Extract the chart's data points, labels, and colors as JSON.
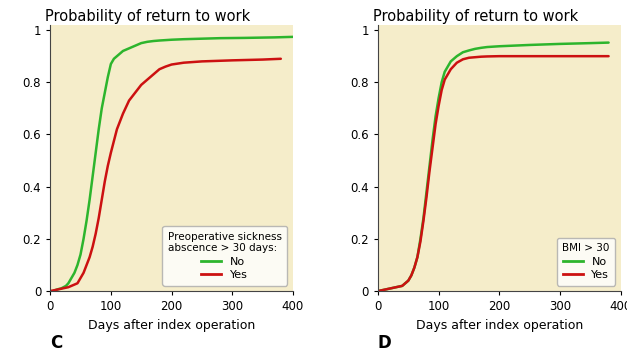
{
  "title": "Probability of return to work",
  "xlabel": "Days after index operation",
  "bg_color": "#f5edca",
  "green_color": "#2db52d",
  "red_color": "#cc1111",
  "xlim": [
    0,
    400
  ],
  "ylim": [
    0,
    1.02
  ],
  "xticks": [
    0,
    100,
    200,
    300,
    400
  ],
  "yticks": [
    0,
    0.2,
    0.4,
    0.6,
    0.8,
    1.0
  ],
  "ytick_labels": [
    "0",
    "0.2",
    "0.4",
    "0.6",
    "0.8",
    "1"
  ],
  "panel_C_label": "C",
  "panel_D_label": "D",
  "legend1_title": "Preoperative sickness\nabscence > 30 days:",
  "legend1_no": "No",
  "legend1_yes": "Yes",
  "legend2_title": "BMI > 30",
  "legend2_no": "No",
  "legend2_yes": "Yes",
  "C_green_x": [
    0,
    5,
    10,
    14,
    18,
    22,
    26,
    30,
    35,
    40,
    45,
    50,
    55,
    60,
    65,
    70,
    75,
    80,
    85,
    90,
    95,
    100,
    105,
    110,
    115,
    120,
    130,
    140,
    150,
    160,
    170,
    180,
    200,
    220,
    250,
    280,
    320,
    370,
    400
  ],
  "C_green_y": [
    0,
    0.0,
    0.005,
    0.008,
    0.01,
    0.015,
    0.02,
    0.03,
    0.05,
    0.07,
    0.1,
    0.14,
    0.2,
    0.27,
    0.35,
    0.44,
    0.53,
    0.62,
    0.7,
    0.76,
    0.82,
    0.87,
    0.89,
    0.9,
    0.91,
    0.92,
    0.93,
    0.94,
    0.95,
    0.955,
    0.958,
    0.96,
    0.963,
    0.965,
    0.967,
    0.969,
    0.97,
    0.972,
    0.974
  ],
  "C_red_x": [
    0,
    10,
    20,
    30,
    35,
    40,
    45,
    50,
    55,
    60,
    65,
    70,
    75,
    80,
    85,
    90,
    95,
    100,
    110,
    120,
    130,
    140,
    150,
    160,
    170,
    180,
    190,
    200,
    220,
    250,
    300,
    350,
    380
  ],
  "C_red_y": [
    0,
    0.005,
    0.01,
    0.015,
    0.02,
    0.025,
    0.03,
    0.05,
    0.07,
    0.1,
    0.13,
    0.17,
    0.22,
    0.28,
    0.35,
    0.42,
    0.48,
    0.53,
    0.62,
    0.68,
    0.73,
    0.76,
    0.79,
    0.81,
    0.83,
    0.85,
    0.86,
    0.868,
    0.875,
    0.88,
    0.884,
    0.887,
    0.89
  ],
  "D_green_x": [
    0,
    10,
    20,
    30,
    40,
    50,
    55,
    60,
    65,
    70,
    75,
    80,
    85,
    90,
    95,
    100,
    105,
    110,
    115,
    120,
    130,
    140,
    150,
    160,
    170,
    180,
    200,
    220,
    250,
    300,
    350,
    380
  ],
  "D_green_y": [
    0,
    0.005,
    0.01,
    0.015,
    0.02,
    0.04,
    0.06,
    0.09,
    0.13,
    0.2,
    0.28,
    0.38,
    0.48,
    0.58,
    0.67,
    0.74,
    0.8,
    0.84,
    0.86,
    0.88,
    0.9,
    0.915,
    0.922,
    0.928,
    0.932,
    0.935,
    0.938,
    0.94,
    0.943,
    0.947,
    0.95,
    0.952
  ],
  "D_red_x": [
    0,
    10,
    20,
    30,
    40,
    50,
    55,
    60,
    65,
    70,
    75,
    80,
    85,
    90,
    95,
    100,
    105,
    110,
    115,
    120,
    130,
    140,
    150,
    160,
    170,
    180,
    200,
    220,
    250,
    300,
    350,
    380
  ],
  "D_red_y": [
    0,
    0.005,
    0.01,
    0.015,
    0.02,
    0.04,
    0.06,
    0.09,
    0.13,
    0.19,
    0.27,
    0.36,
    0.46,
    0.55,
    0.64,
    0.71,
    0.77,
    0.81,
    0.83,
    0.85,
    0.875,
    0.888,
    0.894,
    0.896,
    0.898,
    0.899,
    0.9,
    0.9,
    0.9,
    0.9,
    0.9,
    0.9
  ]
}
